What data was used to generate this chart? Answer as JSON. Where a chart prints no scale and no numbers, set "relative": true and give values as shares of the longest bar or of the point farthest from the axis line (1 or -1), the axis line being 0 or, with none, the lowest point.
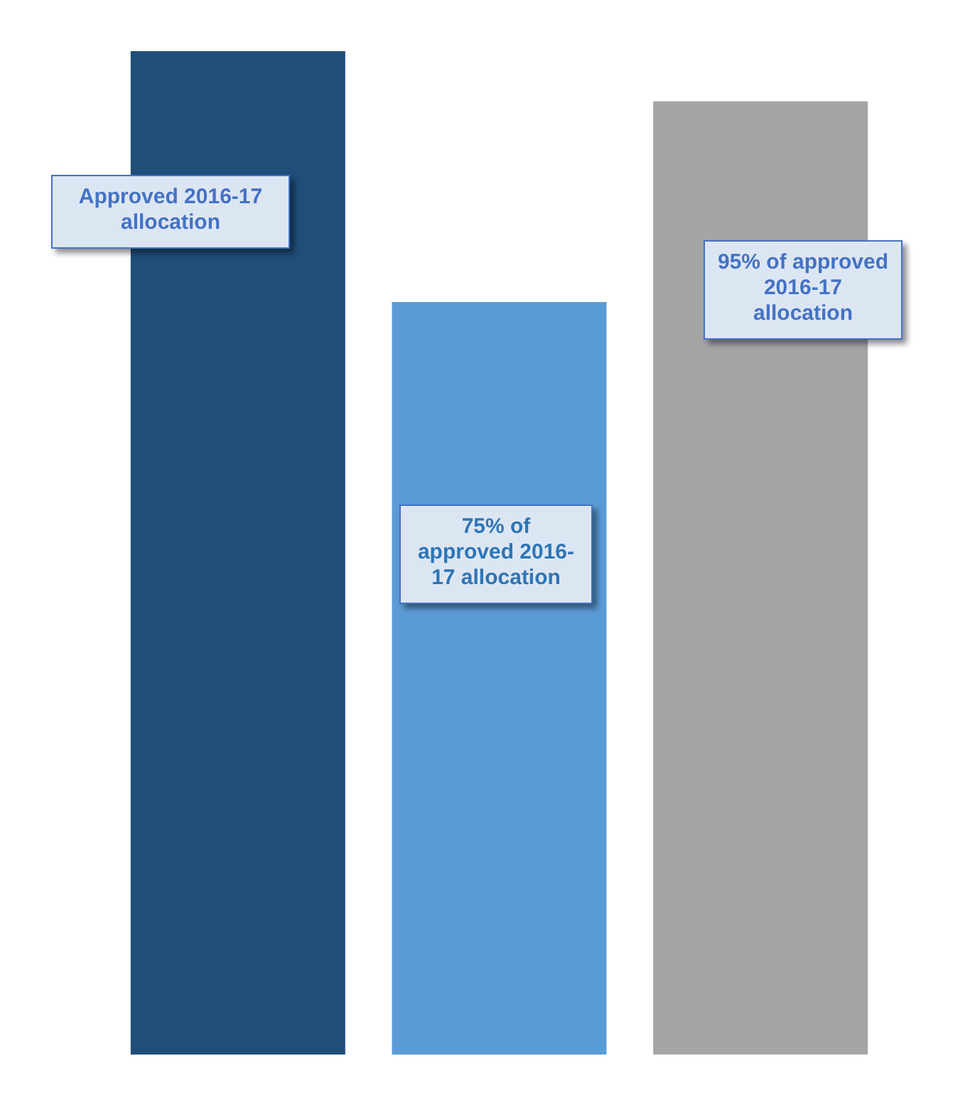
{
  "chart_data": {
    "type": "bar",
    "relative": true,
    "categories": [
      null,
      null,
      null
    ],
    "values": [
      1,
      0.75,
      0.95
    ],
    "colors": [
      "#1f4e79",
      "#5b9bd5",
      "#a5a5a5"
    ],
    "annotations": [
      "Approved 2016-17 allocation",
      "75% of approved 2016-17 allocation",
      "95% of approved 2016-17 allocation"
    ]
  }
}
